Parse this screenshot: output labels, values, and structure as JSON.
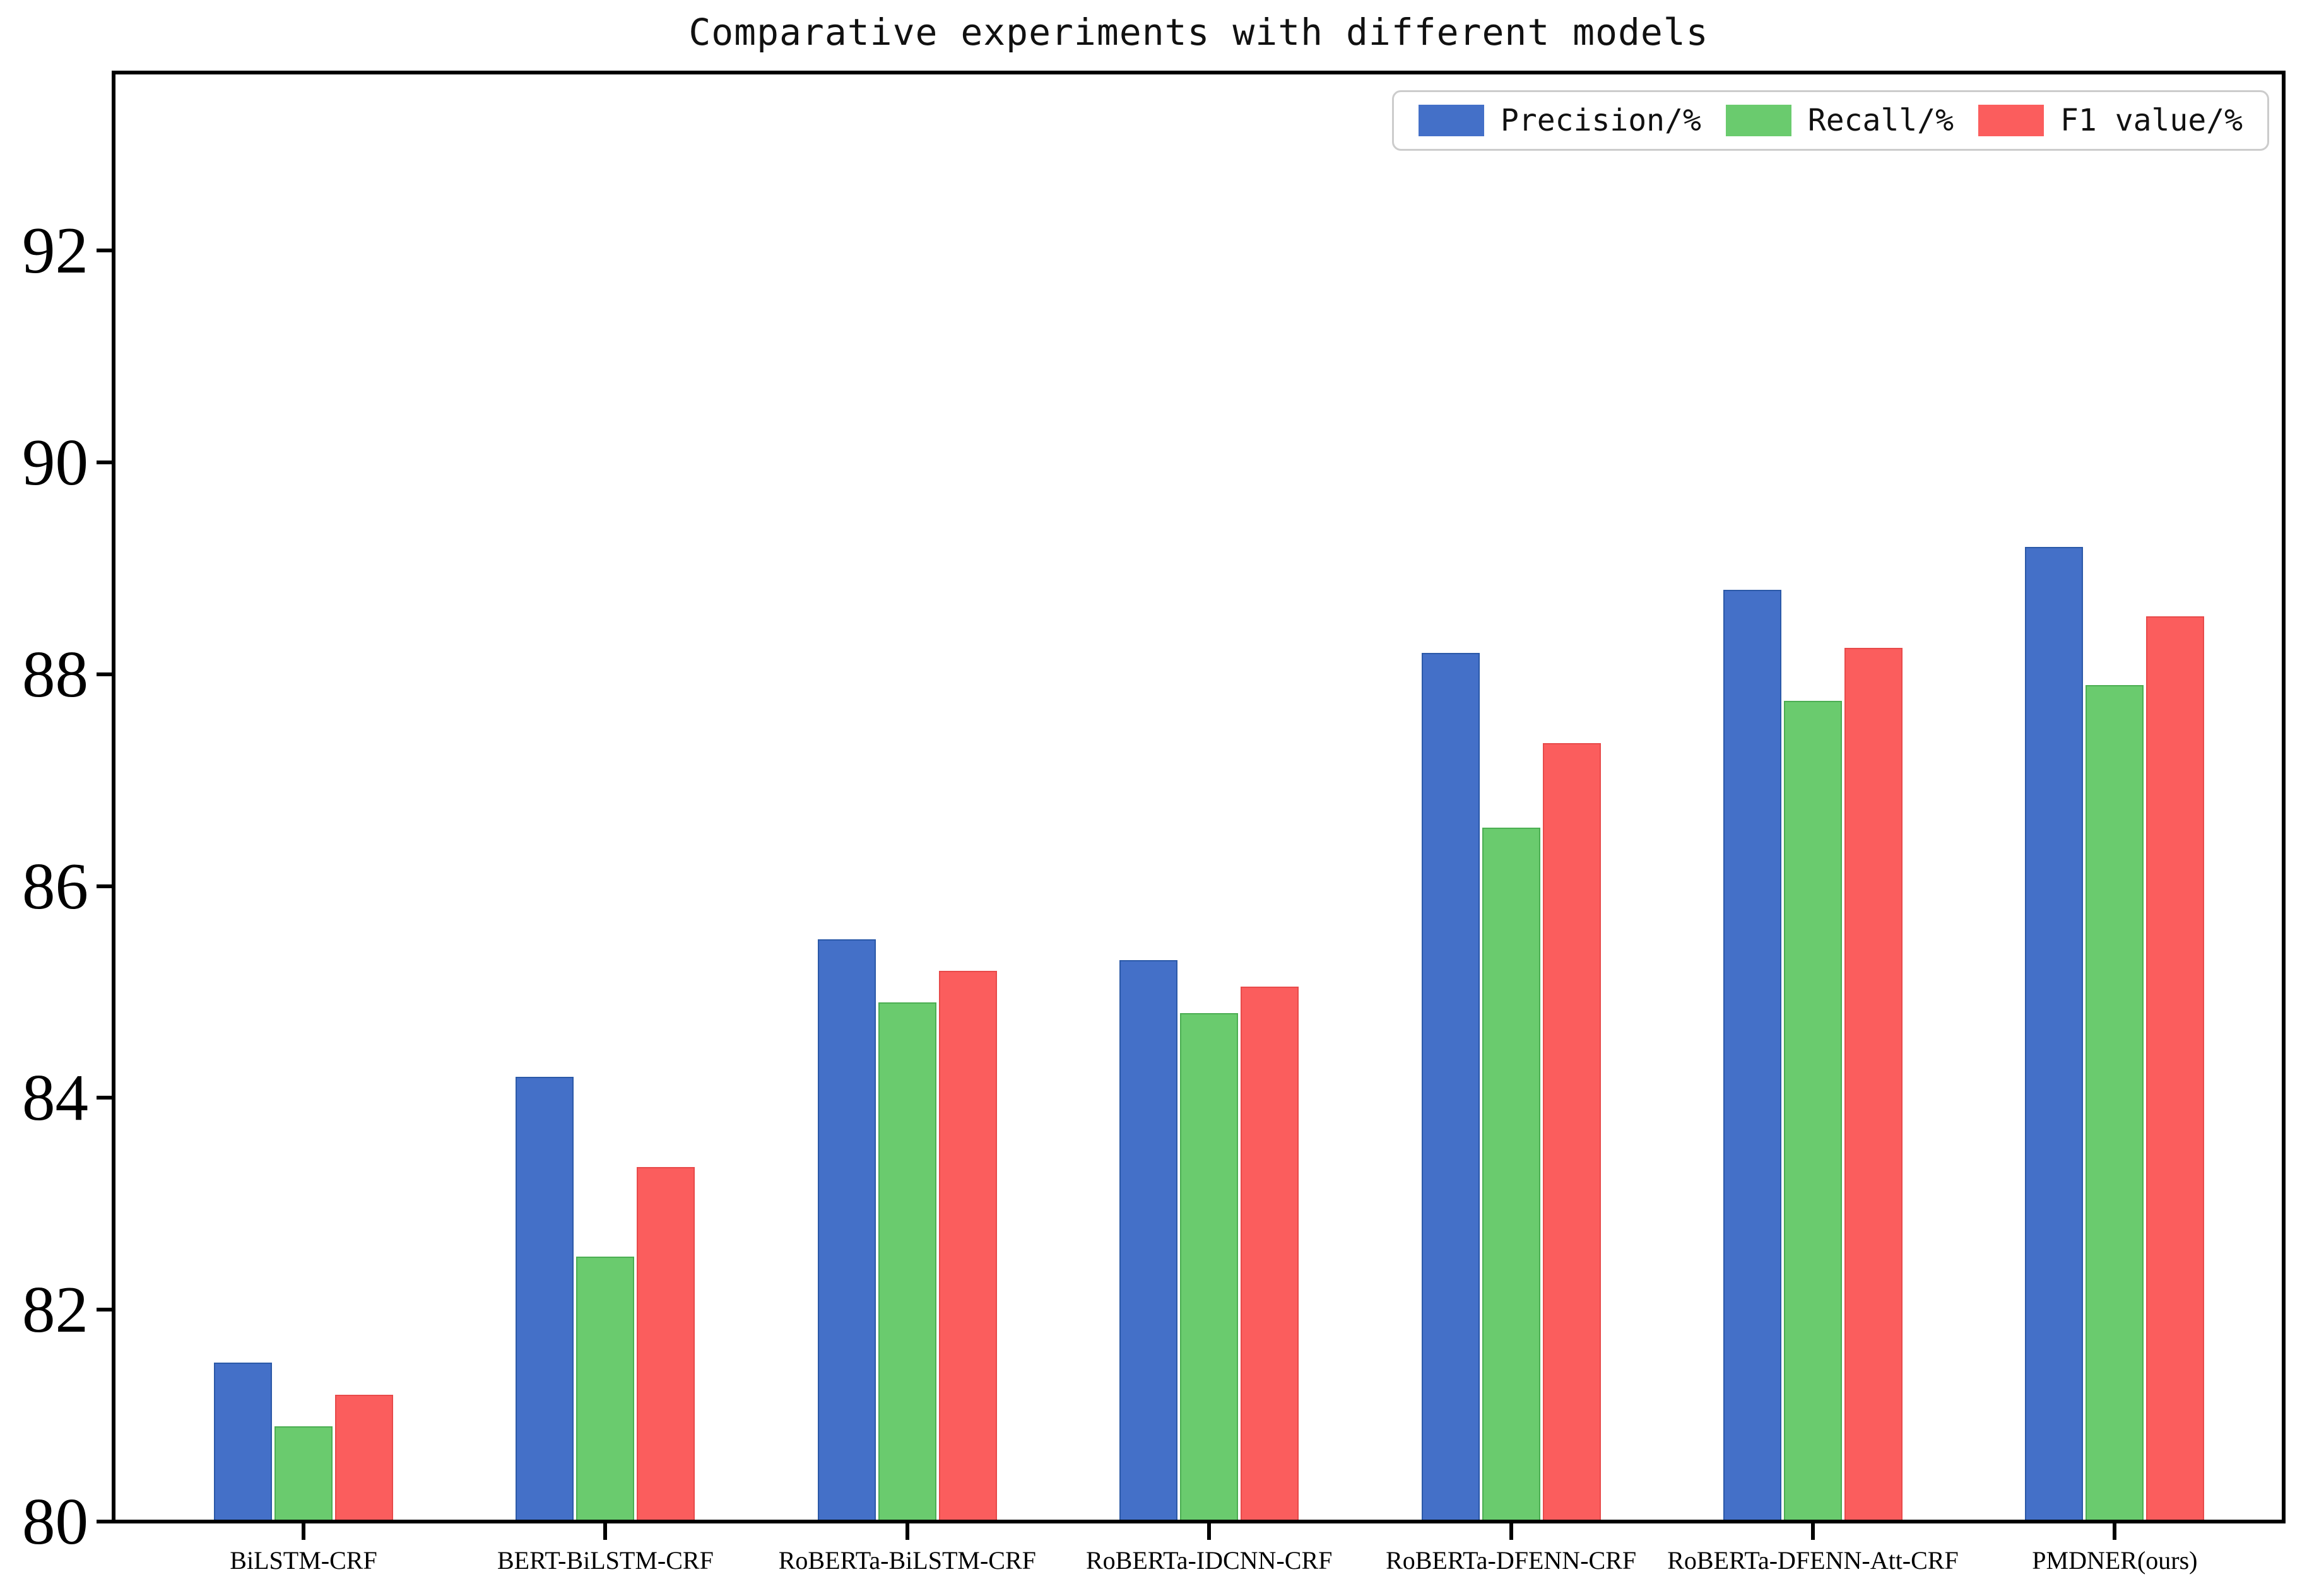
{
  "chart_data": {
    "type": "bar",
    "title": "Comparative experiments with different models",
    "categories": [
      "BiLSTM-CRF",
      "BERT-BiLSTM-CRF",
      "RoBERTa-BiLSTM-CRF",
      "RoBERTa-IDCNN-CRF",
      "RoBERTa-DFENN-CRF",
      "RoBERTa-DFENN-Att-CRF",
      "PMDNER(ours)"
    ],
    "series": [
      {
        "name": "Precision/%",
        "color": "#4470C8",
        "edge_color": "#2B59A8",
        "values": [
          81.5,
          84.2,
          85.5,
          85.3,
          88.2,
          88.8,
          89.2
        ]
      },
      {
        "name": "Recall/%",
        "color": "#6ACB6E",
        "edge_color": "#4BAE52",
        "values": [
          80.9,
          82.5,
          84.9,
          84.8,
          86.55,
          87.75,
          87.9
        ]
      },
      {
        "name": "F1 value/%",
        "color": "#FB5D5D",
        "edge_color": "#E84A4A",
        "values": [
          81.2,
          83.35,
          85.2,
          85.05,
          87.35,
          88.25,
          88.55
        ]
      }
    ],
    "xlabel": "",
    "ylabel": "",
    "yticks": [
      80,
      82,
      84,
      86,
      88,
      90,
      92
    ],
    "ylim": [
      80,
      93.7
    ],
    "grid": false,
    "legend_position": "upper right"
  }
}
